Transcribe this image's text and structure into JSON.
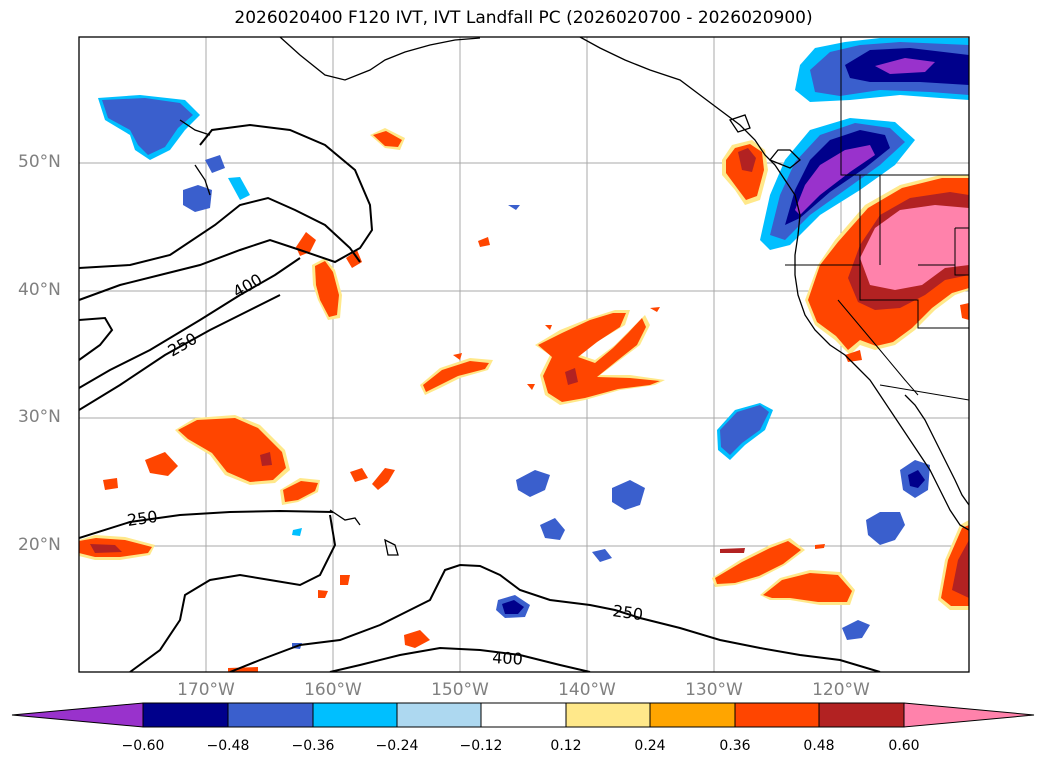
{
  "title": "2026020400 F120 IVT, IVT Landfall PC (2026020700 - 2026020900)",
  "lat_labels": [
    "50°N",
    "40°N",
    "30°N",
    "20°N"
  ],
  "lon_labels": [
    "170°W",
    "160°W",
    "150°W",
    "140°W",
    "130°W",
    "120°W"
  ],
  "contour_labels": [
    "400",
    "250",
    "250",
    "250",
    "400"
  ],
  "colorbar": {
    "ticks": [
      "−0.60",
      "−0.48",
      "−0.36",
      "−0.24",
      "−0.12",
      "0.12",
      "0.24",
      "0.36",
      "0.48",
      "0.60"
    ],
    "colors": [
      "#9932cc",
      "#00008b",
      "#3a5fcd",
      "#00bfff",
      "#add8f0",
      "#ffffff",
      "#ffe88a",
      "#ffa500",
      "#ff4500",
      "#b22222",
      "#ff82ab"
    ]
  },
  "colors": {
    "coast": "#000000",
    "grid": "#a9a9a9",
    "neg_purple": "#9932cc",
    "neg_darkblue": "#00008b",
    "neg_blue": "#3a5fcd",
    "neg_lightblue": "#00bfff",
    "pos_yellow": "#ffe88a",
    "pos_orange": "#ffa500",
    "pos_redorange": "#ff4500",
    "pos_firebrick": "#b22222",
    "pos_pink": "#ff82ab"
  }
}
